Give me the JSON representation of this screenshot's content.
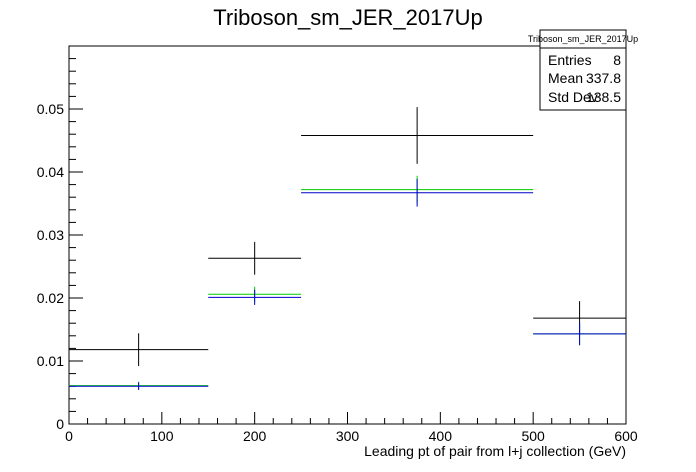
{
  "chart_data": {
    "type": "histogram",
    "title": "Triboson_sm_JER_2017Up",
    "xlabel": "Leading pt of pair from l+j collection (GeV)",
    "ylabel": "",
    "xlim": [
      0,
      600
    ],
    "ylim": [
      0,
      0.06
    ],
    "x_ticks": [
      "0",
      "100",
      "200",
      "300",
      "400",
      "500",
      "600"
    ],
    "y_ticks": [
      "0",
      "0.01",
      "0.02",
      "0.03",
      "0.04",
      "0.05"
    ],
    "y_tick_values": [
      0,
      0.01,
      0.02,
      0.03,
      0.04,
      0.05
    ],
    "x_tick_values": [
      0,
      100,
      200,
      300,
      400,
      500,
      600
    ],
    "bins": [
      [
        0,
        150
      ],
      [
        150,
        250
      ],
      [
        250,
        500
      ],
      [
        500,
        600
      ]
    ],
    "series": [
      {
        "color": "#000000",
        "values": [
          0.0118,
          0.0263,
          0.0458,
          0.0168
        ],
        "errors": [
          0.0026,
          0.0026,
          0.0045,
          0.0027
        ]
      },
      {
        "color": "#00cc00",
        "values": [
          0.0061,
          0.0206,
          0.0372,
          0.0143
        ],
        "errors": [
          0.0006,
          0.0012,
          0.0022,
          0.0018
        ]
      },
      {
        "color": "#0000cc",
        "values": [
          0.006,
          0.0201,
          0.0367,
          0.0143
        ],
        "errors": [
          0.0006,
          0.0012,
          0.0022,
          0.0018
        ]
      }
    ],
    "stats_box": {
      "title": "Triboson_sm_JER_2017Up",
      "rows": [
        {
          "label": "Entries",
          "value": "8"
        },
        {
          "label": "Mean",
          "value": "337.8"
        },
        {
          "label": "Std Dev",
          "value": "138.5"
        }
      ]
    },
    "grid": false
  }
}
